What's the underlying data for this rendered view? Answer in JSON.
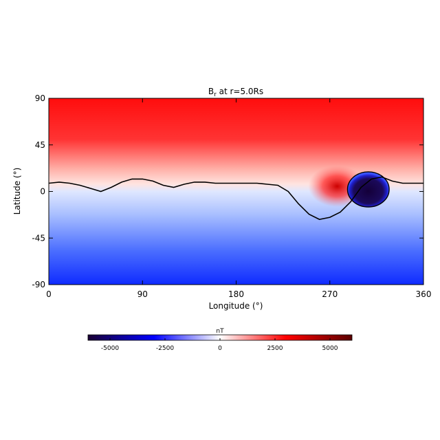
{
  "chart_data": {
    "type": "heatmap",
    "title_main": "B",
    "title_sub": "r",
    "title_rest": " at r=5.0Rs",
    "xlabel": "Longitude (°)",
    "ylabel": "Latitude (°)",
    "xlim": [
      0,
      360
    ],
    "ylim": [
      -90,
      90
    ],
    "x_ticks": [
      "0",
      "90",
      "180",
      "270",
      "360"
    ],
    "x_tick_values": [
      0,
      90,
      180,
      270,
      360
    ],
    "y_ticks": [
      "90",
      "45",
      "0",
      "-45",
      "-90"
    ],
    "y_tick_values": [
      90,
      45,
      0,
      -45,
      -90
    ],
    "colorbar": {
      "label": "nT",
      "range": [
        -6000,
        6000
      ],
      "ticks": [
        "-5000",
        "-2500",
        "0",
        "2500",
        "5000"
      ],
      "tick_values": [
        -5000,
        -2500,
        0,
        2500,
        5000
      ],
      "colors": [
        "#1a0033",
        "#0000ff",
        "#ffffff",
        "#ff0000",
        "#5a0000"
      ]
    },
    "neutral_line": {
      "lon": [
        0,
        10,
        20,
        30,
        40,
        50,
        60,
        70,
        80,
        90,
        100,
        110,
        120,
        130,
        140,
        150,
        160,
        170,
        180,
        190,
        200,
        210,
        220,
        230,
        240,
        250,
        260,
        270,
        280,
        290,
        300,
        310,
        320,
        330,
        340,
        350,
        360
      ],
      "lat": [
        8,
        9,
        8,
        6,
        3,
        0,
        4,
        9,
        12,
        12,
        10,
        6,
        4,
        7,
        9,
        9,
        8,
        8,
        8,
        8,
        8,
        7,
        6,
        0,
        -12,
        -22,
        -27,
        -25,
        -20,
        -10,
        4,
        12,
        14,
        10,
        8,
        8,
        8
      ]
    },
    "spot": {
      "lon": 307,
      "lat": 2,
      "radius_lon": 20,
      "radius_lat": 17,
      "field": -6000
    },
    "red_patch": {
      "lon": 277,
      "lat": 5,
      "field": 4000
    }
  }
}
